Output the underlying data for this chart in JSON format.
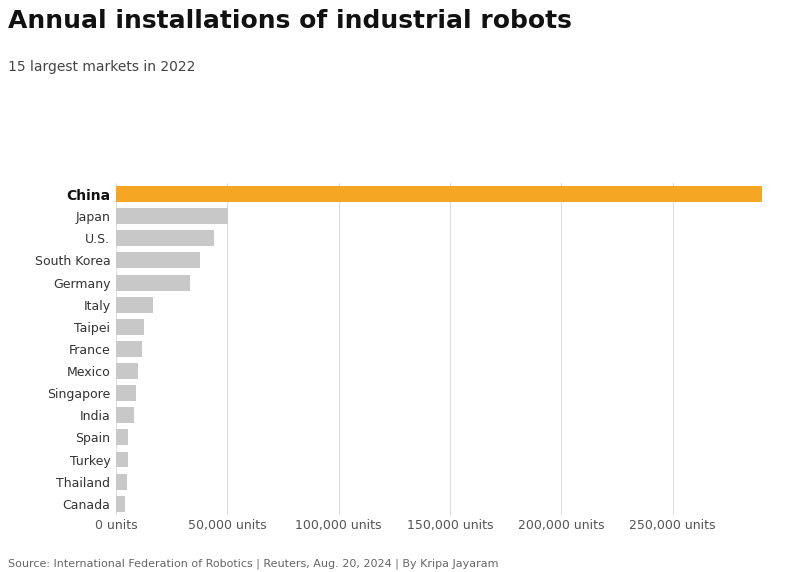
{
  "title": "Annual installations of industrial robots",
  "subtitle": "15 largest markets in 2022",
  "source_text": "Source: International Federation of Robotics | Reuters, Aug. 20, 2024 | By Kripa Jayaram",
  "countries": [
    "China",
    "Japan",
    "U.S.",
    "South Korea",
    "Germany",
    "Italy",
    "Taipei",
    "France",
    "Mexico",
    "Singapore",
    "India",
    "Spain",
    "Turkey",
    "Thailand",
    "Canada"
  ],
  "values": [
    290258,
    50413,
    44196,
    37807,
    33321,
    16527,
    12674,
    11459,
    9671,
    9062,
    8212,
    5365,
    5236,
    4892,
    4243
  ],
  "colors": [
    "#F5A623",
    "#C8C8C8",
    "#C8C8C8",
    "#C8C8C8",
    "#C8C8C8",
    "#C8C8C8",
    "#C8C8C8",
    "#C8C8C8",
    "#C8C8C8",
    "#C8C8C8",
    "#C8C8C8",
    "#C8C8C8",
    "#C8C8C8",
    "#C8C8C8",
    "#C8C8C8"
  ],
  "xlim": [
    0,
    300000
  ],
  "xticks": [
    0,
    50000,
    100000,
    150000,
    200000,
    250000
  ],
  "xtick_labels": [
    "0 units",
    "50,000 units",
    "100,000 units",
    "150,000 units",
    "200,000 units",
    "250,000 units"
  ],
  "title_fontsize": 18,
  "subtitle_fontsize": 10,
  "label_fontsize": 9,
  "source_fontsize": 8,
  "bar_height": 0.72,
  "background_color": "#FFFFFF",
  "grid_color": "#DDDDDD",
  "label_color": "#333333",
  "title_color": "#111111",
  "subtitle_color": "#444444",
  "source_color": "#666666",
  "xtick_color": "#555555"
}
